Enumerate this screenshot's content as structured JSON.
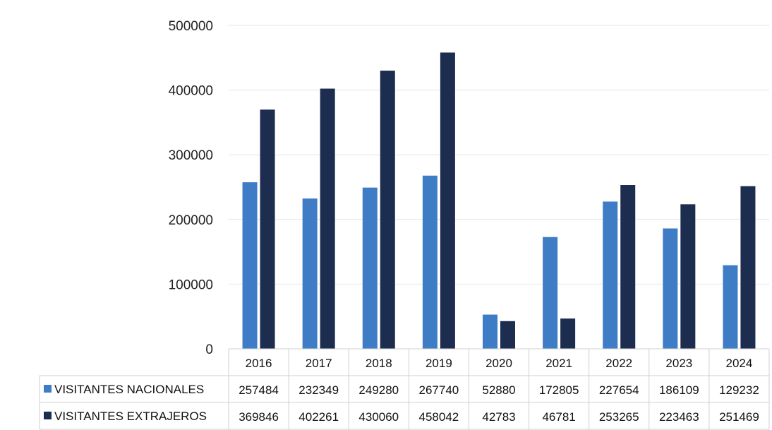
{
  "chart_data": {
    "type": "bar",
    "categories": [
      "2016",
      "2017",
      "2018",
      "2019",
      "2020",
      "2021",
      "2022",
      "2023",
      "2024"
    ],
    "series": [
      {
        "name": "VISITANTES NACIONALES",
        "color": "#3e7cc6",
        "values": [
          257484,
          232349,
          249280,
          267740,
          52880,
          172805,
          227654,
          186109,
          129232
        ]
      },
      {
        "name": "VISITANTES EXTRAJEROS",
        "color": "#1d2d4f",
        "values": [
          369846,
          402261,
          430060,
          458042,
          42783,
          46781,
          253265,
          223463,
          251469
        ]
      }
    ],
    "yticks": [
      "0",
      "100000",
      "200000",
      "300000",
      "400000",
      "500000"
    ],
    "ylim": [
      0,
      500000
    ],
    "grid": true,
    "legend": "data-table-rows",
    "title": "",
    "xlabel": "",
    "ylabel": ""
  }
}
